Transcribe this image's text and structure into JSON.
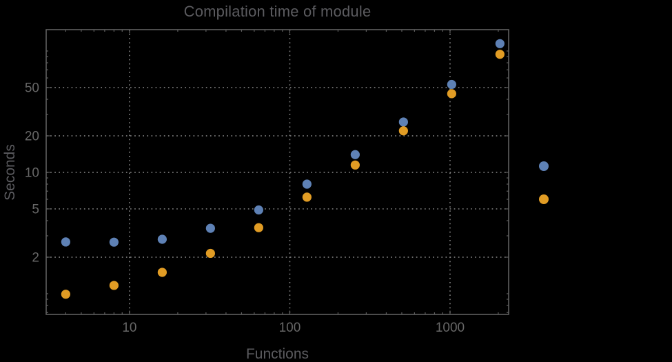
{
  "colors": {
    "background": "#000000",
    "title_text": "#5b5b5f",
    "axis_label_text": "#5b5b5f",
    "tick_label_text": "#676767",
    "frame": "#606060",
    "grid": "#7a7a7a",
    "series_blue": "#5e81b5",
    "series_orange": "#e19c24"
  },
  "legend": {
    "labels_visible": false,
    "markers": [
      "blue",
      "orange"
    ]
  },
  "chart_data": {
    "type": "scatter",
    "title": "Compilation time of module",
    "xlabel": "Functions",
    "ylabel": "Seconds",
    "x_scale": "log",
    "y_scale": "log",
    "grid": true,
    "xlim": [
      3.02,
      2321
    ],
    "ylim": [
      0.675,
      150
    ],
    "xticks": [
      10,
      100,
      1000
    ],
    "yticks": [
      2,
      5,
      10,
      20,
      50
    ],
    "legend_position": "right-outside",
    "x": [
      4,
      8,
      16,
      32,
      64,
      128,
      256,
      512,
      1024,
      2048
    ],
    "series": [
      {
        "name": "blue",
        "color": "#5e81b5",
        "values": [
          2.67,
          2.66,
          2.81,
          3.46,
          4.9,
          8.0,
          14.0,
          26.0,
          53.0,
          115
        ]
      },
      {
        "name": "orange",
        "color": "#e19c24",
        "values": [
          0.99,
          1.17,
          1.5,
          2.15,
          3.5,
          6.25,
          11.5,
          22.0,
          44.5,
          94
        ]
      }
    ]
  }
}
